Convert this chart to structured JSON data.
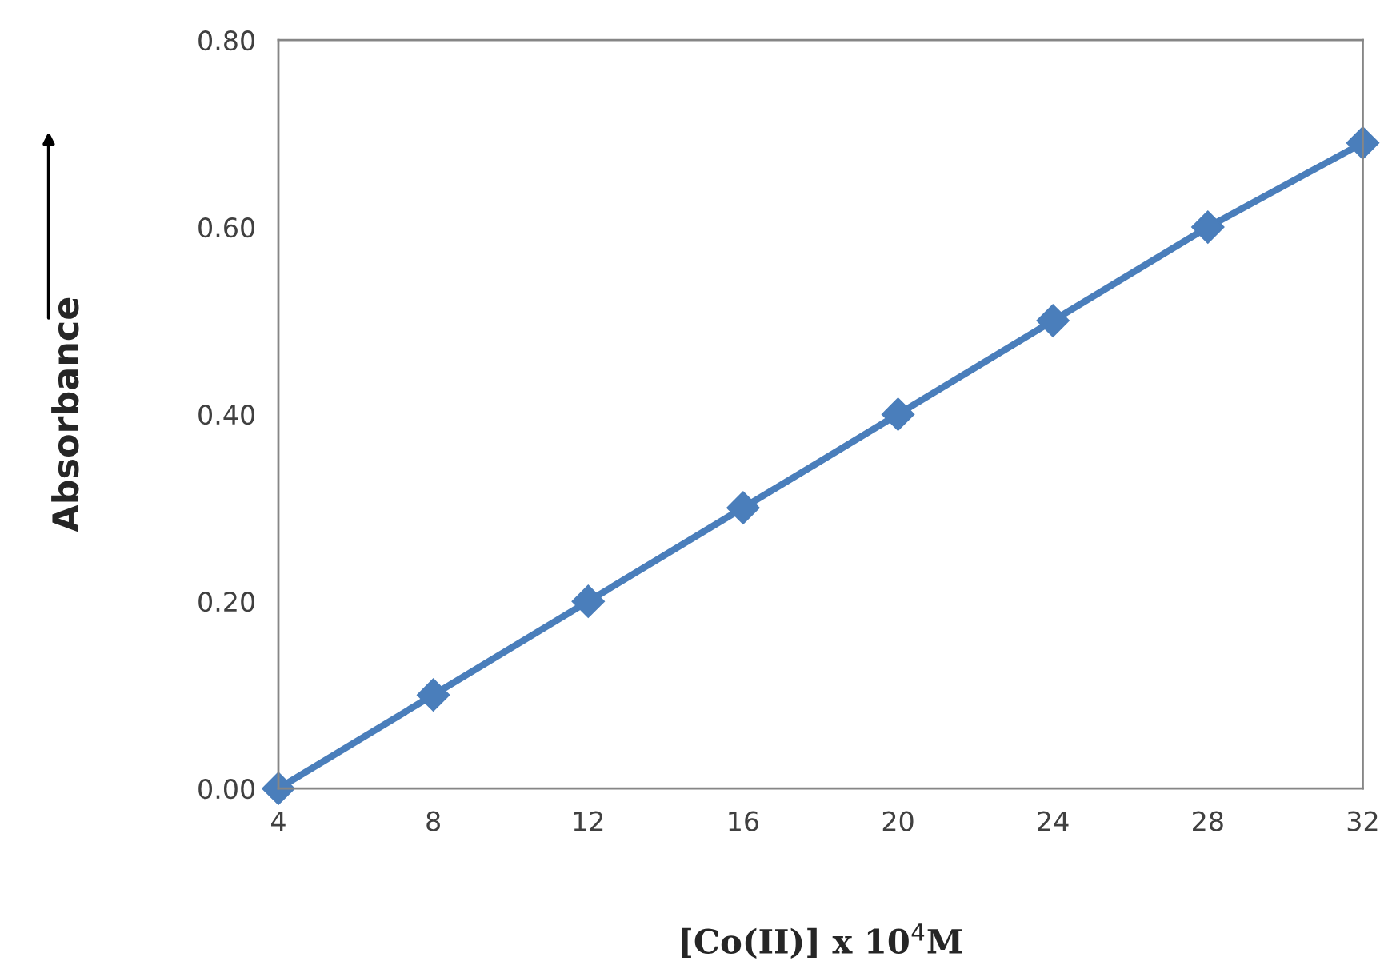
{
  "chart_data": {
    "type": "line",
    "xlabel": "[Co(II)] x 10$^{4}$M",
    "ylabel": "Absorbance",
    "x": [
      4,
      8,
      12,
      16,
      20,
      24,
      28,
      32
    ],
    "series": [
      {
        "color": "#4a7ebb",
        "values": [
          0.0,
          0.1,
          0.2,
          0.3,
          0.4,
          0.5,
          0.6,
          0.69
        ]
      }
    ],
    "xlim": [
      4,
      32
    ],
    "xticks": [
      4,
      8,
      12,
      16,
      20,
      24,
      28,
      32
    ],
    "ylim": [
      0,
      0.8
    ],
    "yticks": [
      {
        "value": 0,
        "label": "0.00"
      },
      {
        "value": 0.2,
        "label": "0.20"
      },
      {
        "value": 0.4,
        "label": "0.40"
      },
      {
        "value": 0.6,
        "label": "0.60"
      },
      {
        "value": 0.8,
        "label": "0.80"
      }
    ],
    "grid": false,
    "marker": "diamond",
    "line_style": "solid"
  }
}
